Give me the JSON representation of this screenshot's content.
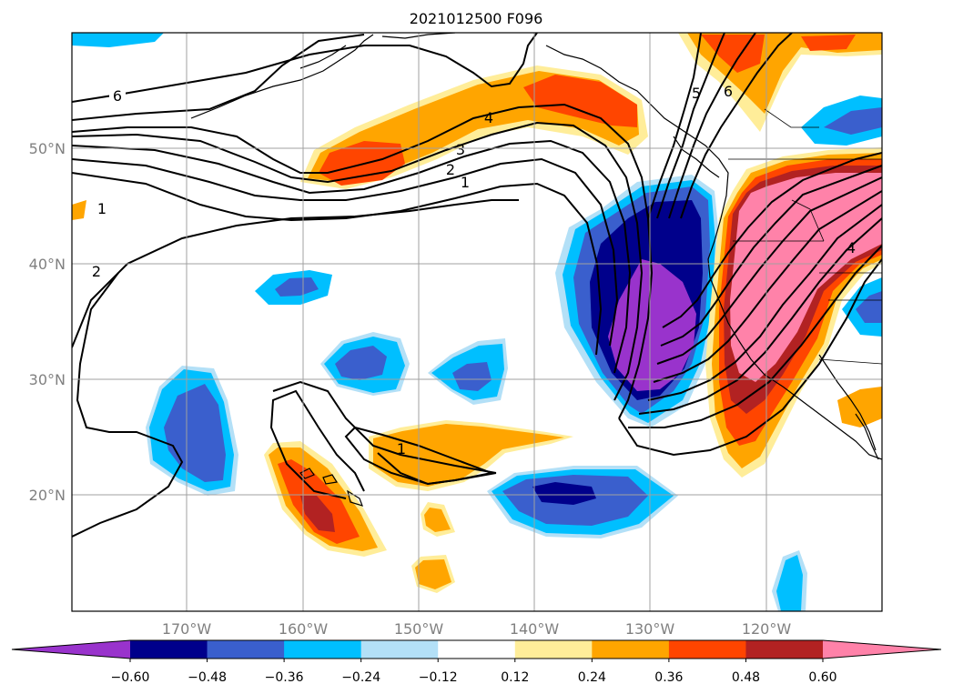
{
  "title": "2021012500 F096",
  "map": {
    "lat_labels": [
      "50°N",
      "40°N",
      "30°N",
      "20°N"
    ],
    "lon_labels": [
      "170°W",
      "160°W",
      "150°W",
      "140°W",
      "130°W",
      "120°W"
    ],
    "contour_labels": [
      "6",
      "4",
      "3",
      "2",
      "1",
      "1",
      "1",
      "2",
      "5",
      "6",
      "4"
    ]
  },
  "colorbar": {
    "colors": [
      "#9933cc",
      "#00008b",
      "#3a5fcd",
      "#00bfff",
      "#b3e0f7",
      "#ffffff",
      "#ffed99",
      "#ffa500",
      "#ff4500",
      "#b22222",
      "#ff82a9"
    ],
    "tick_labels": [
      "−0.60",
      "−0.48",
      "−0.36",
      "−0.24",
      "−0.12",
      "0.12",
      "0.24",
      "0.36",
      "0.48",
      "0.60"
    ]
  }
}
